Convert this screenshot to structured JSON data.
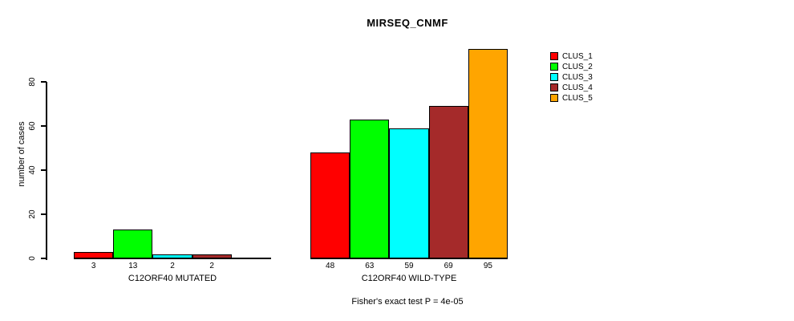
{
  "chart_data": {
    "type": "bar",
    "title": "MIRSEQ_CNMF",
    "ylabel": "number of cases",
    "ylim": [
      0,
      95
    ],
    "yticks": [
      0,
      20,
      40,
      60,
      80
    ],
    "grid": false,
    "legend_position": "right-outside",
    "series": [
      {
        "name": "CLUS_1",
        "color": "#FF0000"
      },
      {
        "name": "CLUS_2",
        "color": "#00FF00"
      },
      {
        "name": "CLUS_3",
        "color": "#00FFFF"
      },
      {
        "name": "CLUS_4",
        "color": "#A52A2A"
      },
      {
        "name": "CLUS_5",
        "color": "#FFA500"
      }
    ],
    "groups": [
      {
        "label": "C12ORF40 MUTATED",
        "values": [
          3,
          13,
          2,
          2,
          0
        ],
        "bar_labels": [
          "3",
          "13",
          "2",
          "2",
          ""
        ]
      },
      {
        "label": "C12ORF40 WILD-TYPE",
        "values": [
          48,
          63,
          59,
          69,
          95
        ],
        "bar_labels": [
          "48",
          "63",
          "59",
          "69",
          "95"
        ]
      }
    ],
    "footnote": "Fisher's exact test P = 4e-05"
  }
}
